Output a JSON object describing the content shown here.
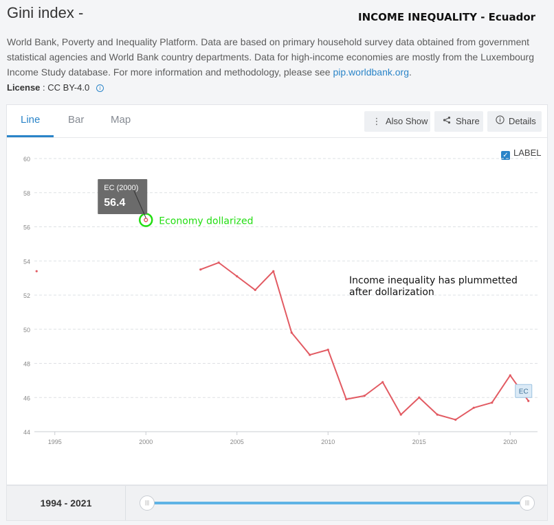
{
  "header": {
    "title": "Gini index -",
    "annotation_title": "INCOME INEQUALITY - Ecuador",
    "description": "World Bank, Poverty and Inequality Platform. Data are based on primary household survey data obtained from government statistical agencies and World Bank country departments. Data for high-income economies are mostly from the Luxembourg Income Study database. For more information and methodology, please see ",
    "description_link": "pip.worldbank.org",
    "description_end": ".",
    "license_label": "License",
    "license_value": ": CC BY-4.0"
  },
  "tabs": [
    {
      "label": "Line",
      "active": true
    },
    {
      "label": "Bar",
      "active": false
    },
    {
      "label": "Map",
      "active": false
    }
  ],
  "toolbar": {
    "also_show": "Also Show",
    "share": "Share",
    "details": "Details"
  },
  "label_toggle": {
    "label": "LABEL",
    "checked": true
  },
  "colors": {
    "line": "#e25a62",
    "accent": "#2a84c8",
    "annotation_green": "#22dd11",
    "tooltip_bg": "#6b6b6b"
  },
  "chart_data": {
    "type": "line",
    "series": [
      {
        "name": "EC",
        "x": [
          1994,
          2003,
          2004,
          2005,
          2006,
          2007,
          2008,
          2009,
          2010,
          2011,
          2012,
          2013,
          2014,
          2015,
          2016,
          2017,
          2018,
          2019,
          2020,
          2021
        ],
        "y": [
          53.4,
          53.5,
          53.9,
          53.1,
          52.3,
          53.4,
          49.8,
          48.5,
          48.8,
          45.9,
          46.1,
          46.9,
          45.0,
          46.0,
          45.0,
          44.7,
          45.4,
          45.7,
          47.3,
          45.8
        ]
      }
    ],
    "highlight": {
      "x": 2000,
      "y": 56.4
    },
    "tooltip": {
      "label": "EC (2000)",
      "value": "56.4"
    },
    "annotations": [
      {
        "text": "Economy dollarized"
      },
      {
        "text": "Income inequality has plummetted after dollarization"
      }
    ],
    "series_end_label": "EC",
    "x_ticks": [
      "1995",
      "2000",
      "2005",
      "2010",
      "2015",
      "2020"
    ],
    "y_ticks": [
      "44",
      "46",
      "48",
      "50",
      "52",
      "54",
      "56",
      "58",
      "60"
    ],
    "xlim": [
      1993.5,
      2021.5
    ],
    "ylim": [
      44,
      60
    ],
    "grid": true
  },
  "footer": {
    "range": "1994 - 2021"
  }
}
